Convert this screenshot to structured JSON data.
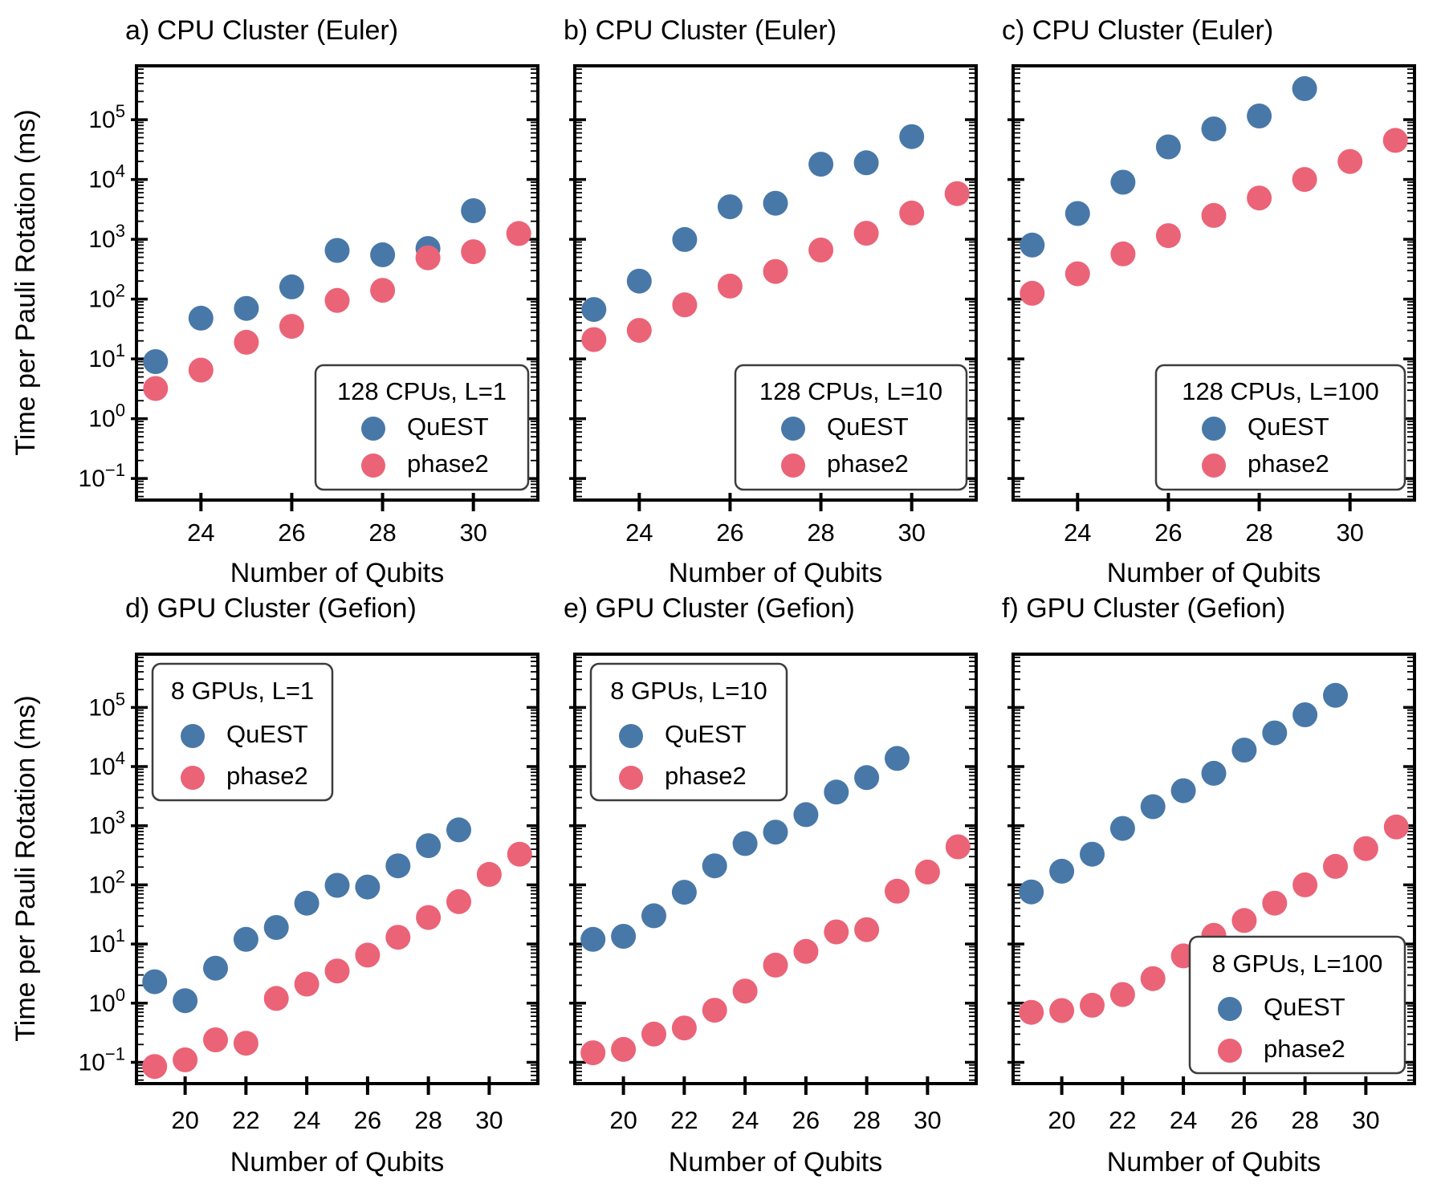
{
  "figure": {
    "ylabel": "Time per Pauli Rotation (ms)",
    "xlabel": "Number of Qubits",
    "colors": {
      "quest": "#4878A8",
      "phase2": "#EB6377",
      "axis": "#000000",
      "legend_border": "#3d3d3d"
    },
    "y_axis": {
      "tick_base": "10",
      "tick_exponents": [
        "5",
        "4",
        "3",
        "2",
        "1",
        "0",
        "−1"
      ]
    }
  },
  "chart_data": [
    {
      "id": "a",
      "type": "scatter",
      "row": 0,
      "col": 0,
      "title": "a) CPU Cluster (Euler)",
      "legend_title": "128 CPUs, L=1",
      "legend_position": "lower right",
      "xlabel": "Number of Qubits",
      "ylabel": "Time per Pauli Rotation (ms)",
      "xticks": [
        24,
        26,
        28,
        30
      ],
      "xlim": [
        22.58,
        31.42
      ],
      "yscale": "log",
      "ylim_log10": [
        -1.36,
        5.9
      ],
      "series": [
        {
          "name": "QuEST",
          "color": "#4878A8",
          "x": [
            23,
            24,
            25,
            26,
            27,
            28,
            29,
            30
          ],
          "y": [
            9,
            48,
            70,
            160,
            650,
            550,
            700,
            3000
          ]
        },
        {
          "name": "phase2",
          "color": "#EB6377",
          "x": [
            23,
            24,
            25,
            26,
            27,
            28,
            29,
            30,
            31
          ],
          "y": [
            3.2,
            6.5,
            19,
            35,
            95,
            140,
            490,
            620,
            1250
          ]
        }
      ]
    },
    {
      "id": "b",
      "type": "scatter",
      "row": 0,
      "col": 1,
      "title": "b) CPU Cluster (Euler)",
      "legend_title": "128 CPUs, L=10",
      "legend_position": "lower right",
      "xlabel": "Number of Qubits",
      "ylabel": "Time per Pauli Rotation (ms)",
      "xticks": [
        24,
        26,
        28,
        30
      ],
      "xlim": [
        22.58,
        31.42
      ],
      "yscale": "log",
      "ylim_log10": [
        -1.36,
        5.9
      ],
      "series": [
        {
          "name": "QuEST",
          "color": "#4878A8",
          "x": [
            23,
            24,
            25,
            26,
            27,
            28,
            29,
            30
          ],
          "y": [
            67,
            200,
            990,
            3500,
            4000,
            18000,
            19000,
            52000
          ]
        },
        {
          "name": "phase2",
          "color": "#EB6377",
          "x": [
            23,
            24,
            25,
            26,
            27,
            28,
            29,
            30,
            31
          ],
          "y": [
            21,
            30,
            80,
            165,
            290,
            660,
            1260,
            2750,
            5800
          ]
        }
      ]
    },
    {
      "id": "c",
      "type": "scatter",
      "row": 0,
      "col": 2,
      "title": "c) CPU Cluster (Euler)",
      "legend_title": "128 CPUs, L=100",
      "legend_position": "lower right",
      "xlabel": "Number of Qubits",
      "ylabel": "Time per Pauli Rotation (ms)",
      "xticks": [
        24,
        26,
        28,
        30
      ],
      "xlim": [
        22.58,
        31.42
      ],
      "yscale": "log",
      "ylim_log10": [
        -1.36,
        5.9
      ],
      "series": [
        {
          "name": "QuEST",
          "color": "#4878A8",
          "x": [
            23,
            24,
            25,
            26,
            27,
            28,
            29
          ],
          "y": [
            800,
            2700,
            9000,
            35000,
            70000,
            115000,
            330000
          ]
        },
        {
          "name": "phase2",
          "color": "#EB6377",
          "x": [
            23,
            24,
            25,
            26,
            27,
            28,
            29,
            30,
            31
          ],
          "y": [
            125,
            265,
            570,
            1150,
            2500,
            4900,
            10000,
            20000,
            45000
          ]
        }
      ]
    },
    {
      "id": "d",
      "type": "scatter",
      "row": 1,
      "col": 0,
      "title": "d) GPU Cluster (Gefion)",
      "legend_title": "8 GPUs, L=1",
      "legend_position": "upper left",
      "xlabel": "Number of Qubits",
      "ylabel": "Time per Pauli Rotation (ms)",
      "xticks": [
        20,
        22,
        24,
        26,
        28,
        30
      ],
      "xlim": [
        18.4,
        31.6
      ],
      "yscale": "log",
      "ylim_log10": [
        -1.36,
        5.9
      ],
      "series": [
        {
          "name": "QuEST",
          "color": "#4878A8",
          "x": [
            19,
            20,
            21,
            22,
            23,
            24,
            25,
            26,
            27,
            28,
            29
          ],
          "y": [
            2.3,
            1.1,
            3.9,
            12,
            19,
            49,
            98,
            92,
            210,
            460,
            850
          ]
        },
        {
          "name": "phase2",
          "color": "#EB6377",
          "x": [
            19,
            20,
            21,
            22,
            23,
            24,
            25,
            26,
            27,
            28,
            29,
            30,
            31
          ],
          "y": [
            0.085,
            0.11,
            0.24,
            0.21,
            1.2,
            2.1,
            3.5,
            6.5,
            13,
            28,
            52,
            150,
            330
          ]
        }
      ]
    },
    {
      "id": "e",
      "type": "scatter",
      "row": 1,
      "col": 1,
      "title": "e) GPU Cluster (Gefion)",
      "legend_title": "8 GPUs, L=10",
      "legend_position": "upper left",
      "xlabel": "Number of Qubits",
      "ylabel": "Time per Pauli Rotation (ms)",
      "xticks": [
        20,
        22,
        24,
        26,
        28,
        30
      ],
      "xlim": [
        18.4,
        31.6
      ],
      "yscale": "log",
      "ylim_log10": [
        -1.36,
        5.9
      ],
      "series": [
        {
          "name": "QuEST",
          "color": "#4878A8",
          "x": [
            19,
            20,
            21,
            22,
            23,
            24,
            25,
            26,
            27,
            28,
            29
          ],
          "y": [
            12,
            13.5,
            30,
            75,
            210,
            500,
            780,
            1540,
            3700,
            6500,
            13700
          ]
        },
        {
          "name": "phase2",
          "color": "#EB6377",
          "x": [
            19,
            20,
            21,
            22,
            23,
            24,
            25,
            26,
            27,
            28,
            29,
            30,
            31
          ],
          "y": [
            0.145,
            0.165,
            0.3,
            0.38,
            0.76,
            1.6,
            4.4,
            7.5,
            16,
            17.5,
            78,
            165,
            440
          ]
        }
      ]
    },
    {
      "id": "f",
      "type": "scatter",
      "row": 1,
      "col": 2,
      "title": "f) GPU Cluster (Gefion)",
      "legend_title": "8 GPUs, L=100",
      "legend_position": "lower right",
      "xlabel": "Number of Qubits",
      "ylabel": "Time per Pauli Rotation (ms)",
      "xticks": [
        20,
        22,
        24,
        26,
        28,
        30
      ],
      "xlim": [
        18.4,
        31.6
      ],
      "yscale": "log",
      "ylim_log10": [
        -1.36,
        5.9
      ],
      "series": [
        {
          "name": "QuEST",
          "color": "#4878A8",
          "x": [
            19,
            20,
            21,
            22,
            23,
            24,
            25,
            26,
            27,
            28,
            29
          ],
          "y": [
            76,
            170,
            330,
            900,
            2100,
            3900,
            7700,
            19000,
            37000,
            75000,
            160000
          ]
        },
        {
          "name": "phase2",
          "color": "#EB6377",
          "x": [
            19,
            20,
            21,
            22,
            23,
            24,
            25,
            26,
            27,
            28,
            29,
            30,
            31
          ],
          "y": [
            0.7,
            0.75,
            0.92,
            1.4,
            2.6,
            6.3,
            14,
            25,
            49,
            100,
            205,
            410,
            950
          ]
        }
      ]
    }
  ]
}
